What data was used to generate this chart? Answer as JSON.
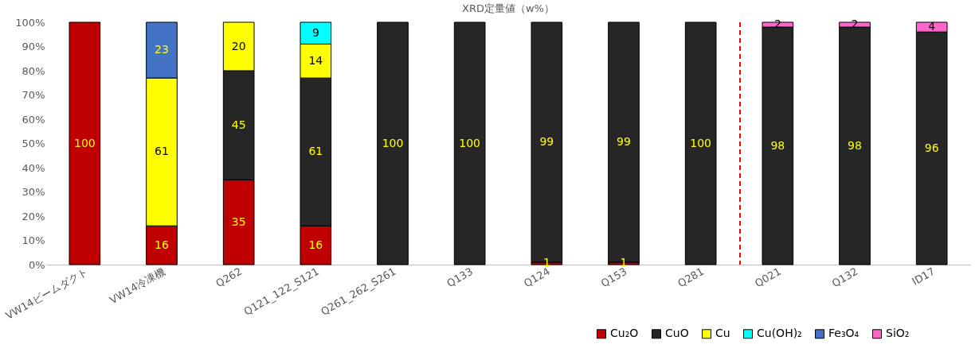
{
  "chart_data": {
    "type": "bar",
    "title": "XRD定量値（w%）",
    "stacked": true,
    "data_labels": true,
    "grid": false,
    "legend": "bottom right",
    "categories": [
      "VW14ビームダクト",
      "VW14冷凍機",
      "Q262",
      "Q121_122_S121",
      "Q261_262_S261",
      "Q133",
      "Q124",
      "Q153",
      "Q281",
      "Q021",
      "Q132",
      "ID17"
    ],
    "ylim": [
      0,
      100
    ],
    "yticks": [
      {
        "value": 0,
        "label": "0%"
      },
      {
        "value": 10,
        "label": "10%"
      },
      {
        "value": 20,
        "label": "20%"
      },
      {
        "value": 30,
        "label": "30%"
      },
      {
        "value": 40,
        "label": "40%"
      },
      {
        "value": 50,
        "label": "50%"
      },
      {
        "value": 60,
        "label": "60%"
      },
      {
        "value": 70,
        "label": "70%"
      },
      {
        "value": 80,
        "label": "80%"
      },
      {
        "value": 90,
        "label": "90%"
      },
      {
        "value": 100,
        "label": "100%"
      }
    ],
    "series": [
      {
        "name": "Cu₂O",
        "color": "#c00000",
        "values": [
          100,
          16,
          35,
          16,
          null,
          null,
          1,
          1,
          null,
          null,
          null,
          null
        ]
      },
      {
        "name": "CuO",
        "color": "#262626",
        "values": [
          null,
          null,
          45,
          61,
          100,
          100,
          99,
          99,
          100,
          98,
          98,
          96
        ]
      },
      {
        "name": "Cu",
        "color": "#ffff00",
        "values": [
          null,
          61,
          20,
          14,
          null,
          null,
          null,
          null,
          null,
          null,
          null,
          null
        ]
      },
      {
        "name": "Cu(OH)₂",
        "color": "#00ffff",
        "values": [
          null,
          null,
          null,
          9,
          null,
          null,
          null,
          null,
          null,
          null,
          null,
          null
        ]
      },
      {
        "name": "Fe₃O₄",
        "color": "#4472c4",
        "values": [
          null,
          23,
          null,
          null,
          null,
          null,
          null,
          null,
          null,
          null,
          null,
          null
        ]
      },
      {
        "name": "SiO₂",
        "color": "#ff66cc",
        "values": [
          null,
          null,
          null,
          null,
          null,
          null,
          null,
          null,
          null,
          2,
          2,
          4
        ]
      }
    ],
    "ref_lines": [
      {
        "axis": "x",
        "value": "Q021",
        "color": "#ff0000",
        "line_style": "dashed"
      }
    ]
  }
}
